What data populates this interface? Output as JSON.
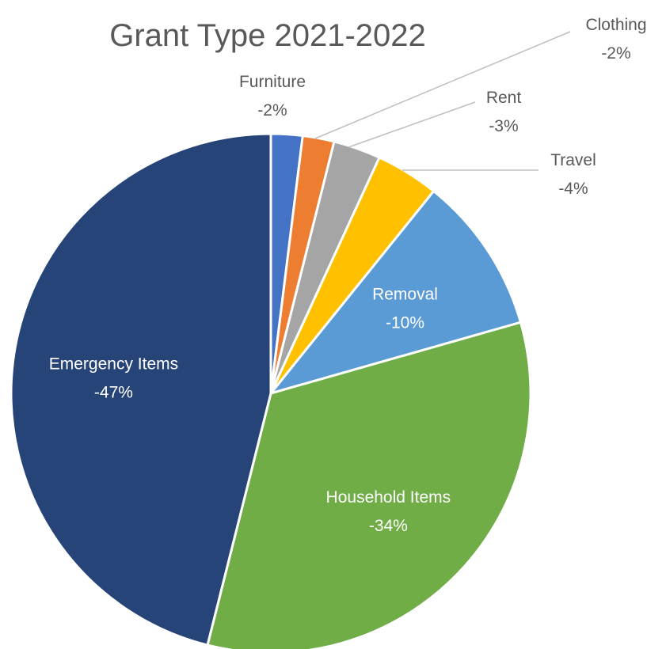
{
  "chart_data": {
    "type": "pie",
    "title": "Grant Type 2021-2022",
    "slices": [
      {
        "name": "Furniture",
        "label": "-2%",
        "value": 2,
        "color": "#4472C4"
      },
      {
        "name": "Clothing",
        "label": "-2%",
        "value": 2,
        "color": "#ED7D31"
      },
      {
        "name": "Rent",
        "label": "-3%",
        "value": 3,
        "color": "#A5A5A5"
      },
      {
        "name": "Travel",
        "label": "-4%",
        "value": 4,
        "color": "#FFC000"
      },
      {
        "name": "Removal",
        "label": "-10%",
        "value": 10,
        "color": "#5B9BD5"
      },
      {
        "name": "Household Items",
        "label": "-34%",
        "value": 34,
        "color": "#70AD47"
      },
      {
        "name": "Emergency Items",
        "label": "-47%",
        "value": 47,
        "color": "#264478"
      }
    ],
    "legend": "none"
  }
}
